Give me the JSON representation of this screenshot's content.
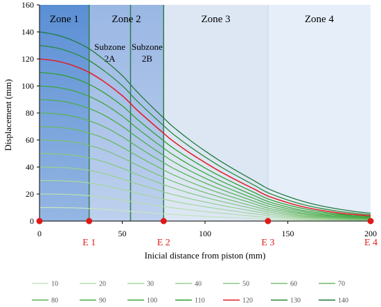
{
  "chart_data": {
    "type": "line",
    "title": "",
    "xlabel": "Inicial distance from  piston (mm)",
    "ylabel": "Displacement (mm)",
    "xlim": [
      0,
      200
    ],
    "ylim": [
      0,
      160
    ],
    "x_ticks": [
      0,
      50,
      100,
      150,
      200
    ],
    "y_ticks": [
      0,
      20,
      40,
      60,
      80,
      100,
      120,
      140,
      160
    ],
    "grid": false,
    "legend_position": "bottom",
    "zones": [
      {
        "label": "Zone 1",
        "x_start": 0,
        "x_end": 30,
        "color": "#5b8fd4"
      },
      {
        "label": "Zone 2",
        "x_start": 30,
        "x_end": 75,
        "color": "#9ab7e4"
      },
      {
        "label": "Zone 3",
        "x_start": 75,
        "x_end": 138,
        "color": "#dde7f4"
      },
      {
        "label": "Zone 4",
        "x_start": 138,
        "x_end": 200,
        "color": "#e6eef9"
      }
    ],
    "subzones": [
      {
        "label_line1": "Subzone",
        "label_line2": "2A",
        "x_start": 30,
        "x_end": 55
      },
      {
        "label_line1": "Subzone",
        "label_line2": "2B",
        "x_start": 55,
        "x_end": 75
      }
    ],
    "boundary_points": [
      {
        "label": "E 1",
        "x": 30
      },
      {
        "label": "E 2",
        "x": 75
      },
      {
        "label": "E 3",
        "x": 138
      },
      {
        "label": "E 4",
        "x": 200
      }
    ],
    "x": [
      0,
      10,
      20,
      30,
      40,
      50,
      55,
      60,
      70,
      75,
      80,
      90,
      100,
      110,
      120,
      130,
      138,
      150,
      160,
      170,
      180,
      190,
      200
    ],
    "series": [
      {
        "name": "10",
        "color": "#c6e4c2",
        "values": [
          10,
          10,
          9.8,
          9.3,
          8.6,
          7.7,
          7.2,
          6.7,
          5.8,
          5.3,
          4.9,
          4.2,
          3.5,
          2.9,
          2.3,
          1.7,
          1.3,
          0.8,
          0.5,
          0.3,
          0.2,
          0.1,
          0
        ]
      },
      {
        "name": "20",
        "color": "#b7ddb2",
        "values": [
          20,
          19.9,
          19.6,
          18.8,
          17.4,
          15.6,
          14.6,
          13.6,
          11.7,
          10.8,
          9.9,
          8.4,
          7.0,
          5.8,
          4.6,
          3.5,
          2.7,
          1.8,
          1.2,
          0.8,
          0.5,
          0.3,
          0.1
        ]
      },
      {
        "name": "30",
        "color": "#a8d6a2",
        "values": [
          30,
          29.9,
          29.4,
          28.2,
          26.1,
          23.4,
          21.9,
          20.4,
          17.6,
          16.2,
          14.9,
          12.6,
          10.6,
          8.7,
          7.0,
          5.3,
          4.1,
          2.7,
          1.9,
          1.2,
          0.8,
          0.5,
          0.3
        ]
      },
      {
        "name": "40",
        "color": "#99cf93",
        "values": [
          40,
          39.8,
          39.1,
          37.5,
          34.8,
          31.2,
          29.2,
          27.2,
          23.4,
          21.6,
          19.8,
          16.8,
          14.1,
          11.6,
          9.3,
          7.1,
          5.4,
          3.7,
          2.6,
          1.8,
          1.2,
          0.8,
          0.5
        ]
      },
      {
        "name": "50",
        "color": "#8ac884",
        "values": [
          50,
          49.7,
          48.8,
          46.8,
          43.5,
          39.0,
          36.5,
          34.0,
          29.3,
          27.0,
          24.8,
          21.0,
          17.6,
          14.5,
          11.7,
          8.9,
          6.8,
          4.7,
          3.3,
          2.3,
          1.6,
          1.1,
          0.8
        ]
      },
      {
        "name": "60",
        "color": "#7bc176",
        "values": [
          60,
          59.6,
          58.5,
          56.0,
          52.2,
          46.8,
          43.8,
          40.8,
          35.1,
          32.4,
          29.7,
          25.2,
          21.1,
          17.4,
          14.0,
          10.7,
          8.2,
          5.7,
          4.0,
          2.9,
          2.0,
          1.4,
          1.0
        ]
      },
      {
        "name": "70",
        "color": "#6cba68",
        "values": [
          70,
          69.5,
          68.1,
          65.2,
          60.8,
          54.6,
          51.1,
          47.6,
          41.0,
          37.8,
          34.7,
          29.4,
          24.6,
          20.3,
          16.4,
          12.6,
          9.6,
          6.8,
          4.9,
          3.5,
          2.5,
          1.8,
          1.3
        ]
      },
      {
        "name": "80",
        "color": "#5db35a",
        "values": [
          80,
          79.4,
          77.6,
          74.3,
          69.3,
          62.4,
          58.4,
          54.4,
          46.8,
          43.2,
          39.6,
          33.6,
          28.2,
          23.3,
          18.8,
          14.5,
          11.2,
          7.9,
          5.7,
          4.2,
          3.1,
          2.3,
          1.7
        ]
      },
      {
        "name": "90",
        "color": "#4eac4c",
        "values": [
          90,
          89.2,
          87.1,
          83.3,
          77.7,
          70.1,
          65.6,
          61.1,
          52.6,
          48.6,
          44.6,
          37.8,
          31.8,
          26.3,
          21.3,
          16.5,
          12.8,
          9.1,
          6.7,
          5.0,
          3.7,
          2.8,
          2.1
        ]
      },
      {
        "name": "100",
        "color": "#3fa53e",
        "values": [
          100,
          99.0,
          96.6,
          92.3,
          86.0,
          77.7,
          72.7,
          67.7,
          58.4,
          54.0,
          49.6,
          42.1,
          35.5,
          29.4,
          23.9,
          18.6,
          14.5,
          10.4,
          7.7,
          5.9,
          4.5,
          3.4,
          2.6
        ]
      },
      {
        "name": "110",
        "color": "#309e30",
        "values": [
          110,
          108.8,
          106.0,
          101.2,
          94.2,
          85.3,
          79.8,
          74.3,
          64.3,
          59.5,
          54.7,
          46.6,
          39.3,
          32.7,
          26.7,
          21.0,
          16.4,
          11.9,
          9.0,
          6.9,
          5.3,
          4.1,
          3.2
        ]
      },
      {
        "name": "120",
        "color": "#e0202a",
        "values": [
          120,
          118.5,
          115.2,
          110.0,
          102.3,
          92.8,
          86.9,
          81.0,
          70.2,
          65.0,
          59.8,
          51.1,
          43.3,
          36.1,
          29.6,
          23.5,
          18.5,
          13.6,
          10.3,
          8.0,
          6.2,
          4.9,
          3.9
        ]
      },
      {
        "name": "130",
        "color": "#2a8a3a",
        "values": [
          130,
          128.2,
          124.5,
          118.7,
          110.3,
          100.2,
          93.9,
          87.6,
          76.1,
          70.6,
          65.1,
          55.8,
          47.5,
          39.8,
          32.9,
          26.3,
          21.0,
          15.6,
          12.0,
          9.4,
          7.4,
          5.9,
          4.7
        ]
      },
      {
        "name": "140",
        "color": "#1f7a3a",
        "values": [
          140,
          137.8,
          133.7,
          127.5,
          118.4,
          107.7,
          101.0,
          94.3,
          82.1,
          76.3,
          70.5,
          60.7,
          51.9,
          43.8,
          36.5,
          29.6,
          24.0,
          18.2,
          14.3,
          11.3,
          9.0,
          7.2,
          5.8
        ]
      }
    ]
  }
}
